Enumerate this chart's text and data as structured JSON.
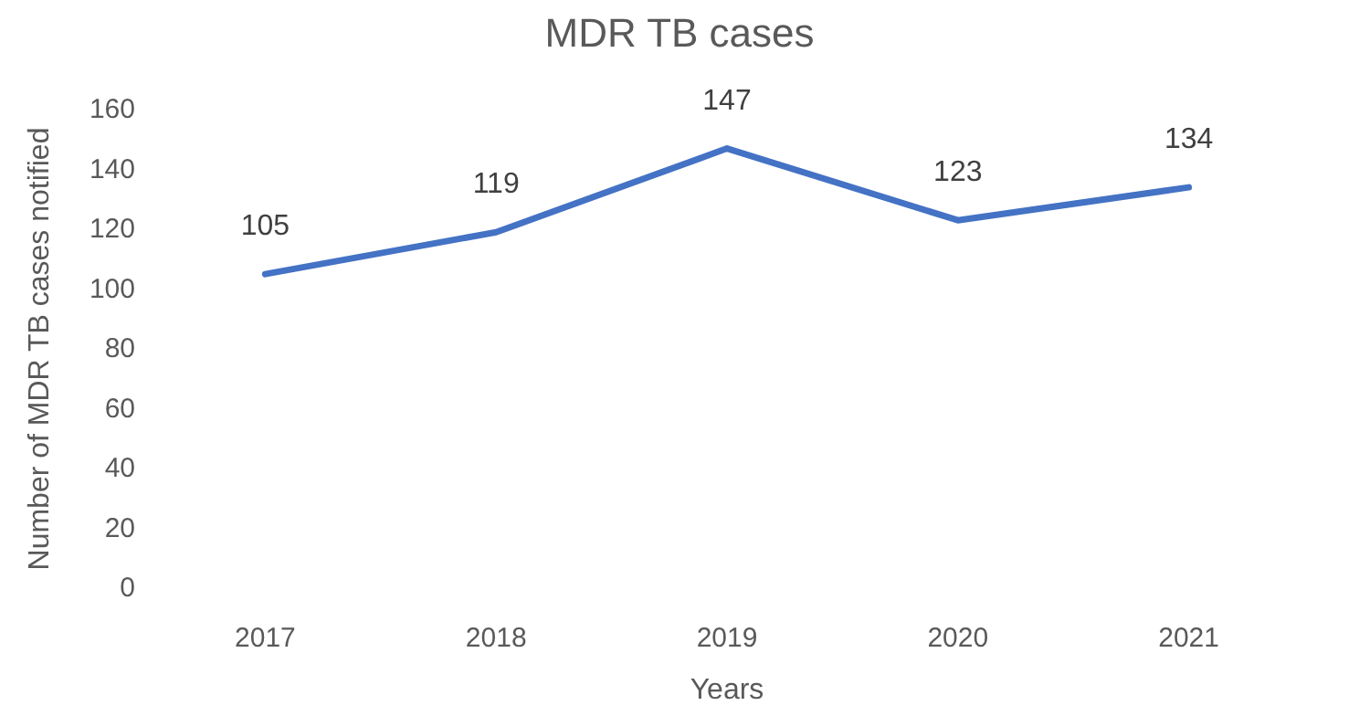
{
  "chart_data": {
    "type": "line",
    "title": "MDR TB cases",
    "xlabel": "Years",
    "ylabel": "Number of MDR TB cases notified",
    "categories": [
      "2017",
      "2018",
      "2019",
      "2020",
      "2021"
    ],
    "series": [
      {
        "color": "#4472c4",
        "values": [
          105,
          119,
          147,
          123,
          134
        ]
      }
    ],
    "ylim": [
      0,
      160
    ],
    "yticks": [
      0,
      20,
      40,
      60,
      80,
      100,
      120,
      140,
      160
    ],
    "grid": false,
    "marker": "none",
    "line_style": "solid",
    "data_labels": true
  }
}
